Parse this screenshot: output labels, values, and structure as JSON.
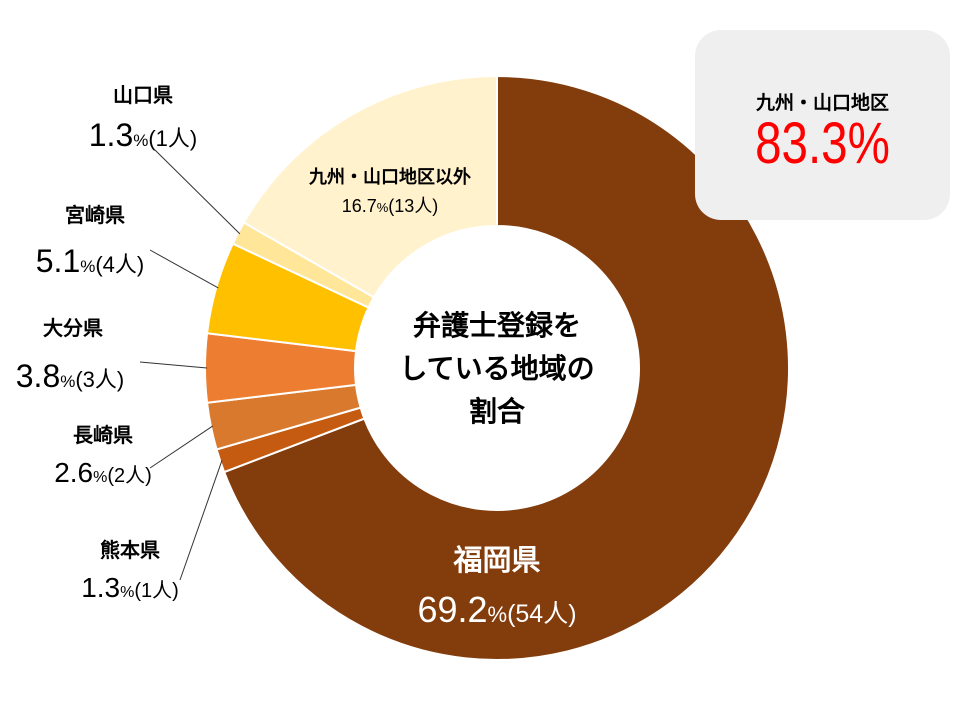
{
  "chart_data": {
    "type": "pie",
    "center_title_lines": [
      "弁護士登録を",
      "している地域の",
      "割合"
    ],
    "slices": [
      {
        "name": "福岡県",
        "pct": "69.2",
        "count": "(54人)",
        "value": 69.2,
        "color": "#833c0b"
      },
      {
        "name": "熊本県",
        "pct": "1.3",
        "count": "(1人)",
        "value": 1.3,
        "color": "#c55a11"
      },
      {
        "name": "長崎県",
        "pct": "2.6",
        "count": "(2人)",
        "value": 2.6,
        "color": "#d9792e"
      },
      {
        "name": "大分県",
        "pct": "3.8",
        "count": "(3人)",
        "value": 3.8,
        "color": "#ed7d31"
      },
      {
        "name": "宮崎県",
        "pct": "5.1",
        "count": "(4人)",
        "value": 5.1,
        "color": "#ffc000"
      },
      {
        "name": "山口県",
        "pct": "1.3",
        "count": "(1人)",
        "value": 1.3,
        "color": "#ffe699"
      },
      {
        "name": "九州・山口地区以外",
        "pct": "16.7",
        "count": "(13人)",
        "value": 16.7,
        "color": "#fff2cc"
      }
    ],
    "percent_sign": "%"
  },
  "summary": {
    "title": "九州・山口地区",
    "value": "83.3%"
  }
}
